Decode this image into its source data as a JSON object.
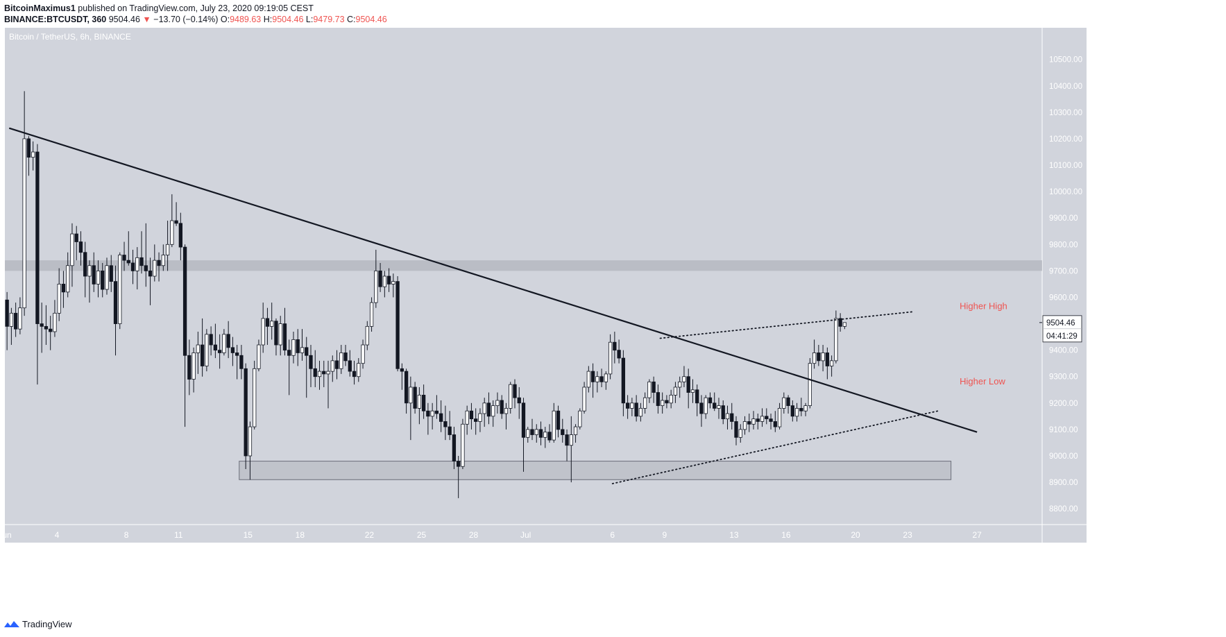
{
  "header": {
    "author": "BitcoinMaximus1",
    "published": "published on TradingView.com, July 23, 2020 09:19:05 CEST",
    "symbol": "BINANCE:BTCUSDT, 360",
    "last": "9504.46",
    "change_arrow": "▼",
    "change": "−13.70 (−0.14%)",
    "o_label": "O:",
    "o": "9489.63",
    "h_label": "H:",
    "h": "9504.46",
    "l_label": "L:",
    "l": "9479.73",
    "c_label": "C:",
    "c": "9504.46"
  },
  "footer": {
    "brand": "TradingView",
    "logo_icon": "tradingview-logo-icon"
  },
  "chart_data": {
    "type": "candlestick",
    "title": "Bitcoin / TetherUS, 6h, BINANCE",
    "colors": {
      "background": "#d1d4dc",
      "candle_up": "#ffffff",
      "candle_down": "#131722",
      "annotation": "#ef5350",
      "zone": "#b2b5be"
    },
    "y_axis": {
      "range": [
        8740,
        10620
      ],
      "ticks": [
        "10500.00",
        "10400.00",
        "10300.00",
        "10200.00",
        "10100.00",
        "10000.00",
        "9900.00",
        "9800.00",
        "9700.00",
        "9600.00",
        "9500.00",
        "9400.00",
        "9300.00",
        "9200.00",
        "9100.00",
        "9000.00",
        "8900.00",
        "8800.00"
      ],
      "last_price_label": "9504.46",
      "countdown_label": "04:41:29"
    },
    "x_axis": {
      "range": [
        "2020-06-01 00:00",
        "2020-07-30 18:00"
      ],
      "ticks": [
        {
          "label": "Jun",
          "date": "2020-06-01"
        },
        {
          "label": "4",
          "date": "2020-06-04"
        },
        {
          "label": "8",
          "date": "2020-06-08"
        },
        {
          "label": "11",
          "date": "2020-06-11"
        },
        {
          "label": "15",
          "date": "2020-06-15"
        },
        {
          "label": "18",
          "date": "2020-06-18"
        },
        {
          "label": "22",
          "date": "2020-06-22"
        },
        {
          "label": "25",
          "date": "2020-06-25"
        },
        {
          "label": "28",
          "date": "2020-06-28"
        },
        {
          "label": "Jul",
          "date": "2020-07-01"
        },
        {
          "label": "6",
          "date": "2020-07-06"
        },
        {
          "label": "9",
          "date": "2020-07-09"
        },
        {
          "label": "13",
          "date": "2020-07-13"
        },
        {
          "label": "16",
          "date": "2020-07-16"
        },
        {
          "label": "20",
          "date": "2020-07-20"
        },
        {
          "label": "23",
          "date": "2020-07-23"
        },
        {
          "label": "27",
          "date": "2020-07-27"
        }
      ]
    },
    "candles_start": "2020-06-01 00:00",
    "candle_hours": 6,
    "candles_ohlc": [
      [
        9590,
        9620,
        9400,
        9490
      ],
      [
        9490,
        9560,
        9420,
        9540
      ],
      [
        9540,
        9580,
        9450,
        9480
      ],
      [
        9480,
        9600,
        9460,
        9560
      ],
      [
        9560,
        10380,
        9530,
        10200
      ],
      [
        10200,
        10210,
        10060,
        10130
      ],
      [
        10130,
        10190,
        10080,
        10150
      ],
      [
        10150,
        10180,
        9270,
        9500
      ],
      [
        9500,
        9580,
        9390,
        9490
      ],
      [
        9490,
        9570,
        9420,
        9480
      ],
      [
        9480,
        9530,
        9400,
        9470
      ],
      [
        9470,
        9590,
        9450,
        9540
      ],
      [
        9540,
        9710,
        9510,
        9650
      ],
      [
        9650,
        9700,
        9560,
        9620
      ],
      [
        9620,
        9770,
        9600,
        9720
      ],
      [
        9720,
        9880,
        9640,
        9840
      ],
      [
        9840,
        9870,
        9740,
        9810
      ],
      [
        9810,
        9850,
        9720,
        9770
      ],
      [
        9770,
        9810,
        9600,
        9680
      ],
      [
        9680,
        9740,
        9580,
        9720
      ],
      [
        9720,
        9770,
        9620,
        9650
      ],
      [
        9650,
        9740,
        9600,
        9700
      ],
      [
        9700,
        9730,
        9600,
        9630
      ],
      [
        9630,
        9750,
        9610,
        9720
      ],
      [
        9720,
        9760,
        9620,
        9660
      ],
      [
        9660,
        9720,
        9380,
        9500
      ],
      [
        9500,
        9770,
        9480,
        9760
      ],
      [
        9760,
        9810,
        9700,
        9740
      ],
      [
        9740,
        9850,
        9720,
        9730
      ],
      [
        9730,
        9780,
        9650,
        9700
      ],
      [
        9700,
        9790,
        9630,
        9750
      ],
      [
        9750,
        9850,
        9690,
        9720
      ],
      [
        9720,
        9880,
        9640,
        9700
      ],
      [
        9700,
        9750,
        9570,
        9680
      ],
      [
        9680,
        9800,
        9660,
        9740
      ],
      [
        9740,
        9770,
        9660,
        9720
      ],
      [
        9720,
        9800,
        9700,
        9760
      ],
      [
        9760,
        9890,
        9700,
        9800
      ],
      [
        9800,
        9990,
        9790,
        9890
      ],
      [
        9890,
        9960,
        9870,
        9880
      ],
      [
        9880,
        9920,
        9740,
        9790
      ],
      [
        9790,
        9800,
        9110,
        9380
      ],
      [
        9380,
        9440,
        9230,
        9290
      ],
      [
        9290,
        9410,
        9240,
        9390
      ],
      [
        9390,
        9470,
        9310,
        9420
      ],
      [
        9420,
        9520,
        9300,
        9340
      ],
      [
        9340,
        9480,
        9320,
        9460
      ],
      [
        9460,
        9490,
        9380,
        9420
      ],
      [
        9420,
        9500,
        9370,
        9400
      ],
      [
        9400,
        9460,
        9330,
        9390
      ],
      [
        9390,
        9480,
        9380,
        9460
      ],
      [
        9460,
        9510,
        9370,
        9410
      ],
      [
        9410,
        9450,
        9340,
        9390
      ],
      [
        9390,
        9420,
        9290,
        9380
      ],
      [
        9380,
        9420,
        9290,
        9330
      ],
      [
        9330,
        9350,
        8950,
        9000
      ],
      [
        9000,
        9130,
        8910,
        9110
      ],
      [
        9110,
        9360,
        9100,
        9330
      ],
      [
        9330,
        9440,
        9320,
        9420
      ],
      [
        9420,
        9580,
        9390,
        9520
      ],
      [
        9520,
        9560,
        9420,
        9490
      ],
      [
        9490,
        9580,
        9440,
        9510
      ],
      [
        9510,
        9520,
        9380,
        9420
      ],
      [
        9420,
        9530,
        9380,
        9500
      ],
      [
        9500,
        9560,
        9380,
        9400
      ],
      [
        9400,
        9440,
        9230,
        9380
      ],
      [
        9380,
        9470,
        9350,
        9440
      ],
      [
        9440,
        9480,
        9340,
        9390
      ],
      [
        9390,
        9480,
        9360,
        9410
      ],
      [
        9410,
        9450,
        9220,
        9380
      ],
      [
        9380,
        9420,
        9260,
        9330
      ],
      [
        9330,
        9400,
        9260,
        9300
      ],
      [
        9300,
        9360,
        9250,
        9320
      ],
      [
        9320,
        9360,
        9260,
        9310
      ],
      [
        9310,
        9360,
        9180,
        9320
      ],
      [
        9320,
        9380,
        9280,
        9360
      ],
      [
        9360,
        9400,
        9290,
        9330
      ],
      [
        9330,
        9420,
        9310,
        9390
      ],
      [
        9390,
        9420,
        9340,
        9360
      ],
      [
        9360,
        9400,
        9300,
        9320
      ],
      [
        9320,
        9360,
        9270,
        9300
      ],
      [
        9300,
        9370,
        9280,
        9350
      ],
      [
        9350,
        9440,
        9330,
        9420
      ],
      [
        9420,
        9510,
        9400,
        9490
      ],
      [
        9490,
        9600,
        9470,
        9580
      ],
      [
        9580,
        9780,
        9560,
        9700
      ],
      [
        9700,
        9730,
        9620,
        9640
      ],
      [
        9640,
        9700,
        9600,
        9680
      ],
      [
        9680,
        9710,
        9620,
        9650
      ],
      [
        9650,
        9690,
        9600,
        9660
      ],
      [
        9660,
        9680,
        9320,
        9330
      ],
      [
        9330,
        9350,
        9250,
        9320
      ],
      [
        9320,
        9330,
        9160,
        9200
      ],
      [
        9200,
        9300,
        9060,
        9260
      ],
      [
        9260,
        9280,
        9160,
        9180
      ],
      [
        9180,
        9260,
        9120,
        9230
      ],
      [
        9230,
        9270,
        9140,
        9170
      ],
      [
        9170,
        9200,
        9080,
        9150
      ],
      [
        9150,
        9200,
        9100,
        9170
      ],
      [
        9170,
        9230,
        9140,
        9160
      ],
      [
        9160,
        9210,
        9090,
        9130
      ],
      [
        9130,
        9190,
        9060,
        9110
      ],
      [
        9110,
        9170,
        9060,
        9080
      ],
      [
        9080,
        9110,
        8950,
        8980
      ],
      [
        8980,
        9000,
        8840,
        8960
      ],
      [
        8960,
        9140,
        8950,
        9120
      ],
      [
        9120,
        9190,
        9080,
        9170
      ],
      [
        9170,
        9200,
        9100,
        9140
      ],
      [
        9140,
        9180,
        9080,
        9130
      ],
      [
        9130,
        9180,
        9090,
        9160
      ],
      [
        9160,
        9220,
        9110,
        9200
      ],
      [
        9200,
        9240,
        9120,
        9150
      ],
      [
        9150,
        9210,
        9110,
        9190
      ],
      [
        9190,
        9240,
        9160,
        9210
      ],
      [
        9210,
        9230,
        9140,
        9160
      ],
      [
        9160,
        9200,
        9100,
        9180
      ],
      [
        9180,
        9280,
        9160,
        9270
      ],
      [
        9270,
        9290,
        9180,
        9220
      ],
      [
        9220,
        9260,
        9140,
        9200
      ],
      [
        9200,
        9220,
        8940,
        9070
      ],
      [
        9070,
        9110,
        9050,
        9100
      ],
      [
        9100,
        9140,
        9060,
        9080
      ],
      [
        9080,
        9120,
        9050,
        9100
      ],
      [
        9100,
        9130,
        9040,
        9070
      ],
      [
        9070,
        9110,
        9030,
        9090
      ],
      [
        9090,
        9120,
        9050,
        9060
      ],
      [
        9060,
        9200,
        9050,
        9170
      ],
      [
        9170,
        9190,
        9070,
        9100
      ],
      [
        9100,
        9140,
        9050,
        9080
      ],
      [
        9080,
        9100,
        8980,
        9040
      ],
      [
        9040,
        9150,
        8900,
        9080
      ],
      [
        9080,
        9120,
        9050,
        9110
      ],
      [
        9110,
        9180,
        9100,
        9170
      ],
      [
        9170,
        9280,
        9160,
        9260
      ],
      [
        9260,
        9340,
        9240,
        9320
      ],
      [
        9320,
        9350,
        9220,
        9280
      ],
      [
        9280,
        9320,
        9240,
        9300
      ],
      [
        9300,
        9330,
        9260,
        9280
      ],
      [
        9280,
        9320,
        9250,
        9310
      ],
      [
        9310,
        9460,
        9290,
        9430
      ],
      [
        9430,
        9470,
        9350,
        9400
      ],
      [
        9400,
        9440,
        9350,
        9370
      ],
      [
        9370,
        9400,
        9150,
        9200
      ],
      [
        9200,
        9230,
        9140,
        9180
      ],
      [
        9180,
        9220,
        9150,
        9200
      ],
      [
        9200,
        9230,
        9130,
        9150
      ],
      [
        9150,
        9200,
        9130,
        9180
      ],
      [
        9180,
        9240,
        9160,
        9220
      ],
      [
        9220,
        9290,
        9200,
        9280
      ],
      [
        9280,
        9300,
        9200,
        9240
      ],
      [
        9240,
        9270,
        9160,
        9190
      ],
      [
        9190,
        9240,
        9160,
        9210
      ],
      [
        9210,
        9230,
        9180,
        9200
      ],
      [
        9200,
        9250,
        9180,
        9230
      ],
      [
        9230,
        9280,
        9200,
        9260
      ],
      [
        9260,
        9300,
        9220,
        9280
      ],
      [
        9280,
        9340,
        9260,
        9300
      ],
      [
        9300,
        9330,
        9180,
        9240
      ],
      [
        9240,
        9290,
        9200,
        9250
      ],
      [
        9250,
        9270,
        9150,
        9200
      ],
      [
        9200,
        9230,
        9110,
        9160
      ],
      [
        9160,
        9230,
        9140,
        9220
      ],
      [
        9220,
        9240,
        9180,
        9200
      ],
      [
        9200,
        9240,
        9170,
        9180
      ],
      [
        9180,
        9220,
        9140,
        9190
      ],
      [
        9190,
        9210,
        9120,
        9140
      ],
      [
        9140,
        9190,
        9100,
        9160
      ],
      [
        9160,
        9200,
        9100,
        9130
      ],
      [
        9130,
        9150,
        9040,
        9070
      ],
      [
        9070,
        9120,
        9050,
        9100
      ],
      [
        9100,
        9150,
        9080,
        9130
      ],
      [
        9130,
        9160,
        9090,
        9120
      ],
      [
        9120,
        9170,
        9100,
        9140
      ],
      [
        9140,
        9160,
        9100,
        9130
      ],
      [
        9130,
        9180,
        9110,
        9150
      ],
      [
        9150,
        9180,
        9120,
        9140
      ],
      [
        9140,
        9160,
        9100,
        9130
      ],
      [
        9130,
        9170,
        9090,
        9110
      ],
      [
        9110,
        9200,
        9100,
        9180
      ],
      [
        9180,
        9240,
        9160,
        9220
      ],
      [
        9220,
        9230,
        9160,
        9190
      ],
      [
        9190,
        9210,
        9130,
        9150
      ],
      [
        9150,
        9200,
        9130,
        9180
      ],
      [
        9180,
        9220,
        9150,
        9170
      ],
      [
        9170,
        9200,
        9150,
        9190
      ],
      [
        9190,
        9370,
        9180,
        9350
      ],
      [
        9350,
        9440,
        9330,
        9390
      ],
      [
        9390,
        9420,
        9340,
        9360
      ],
      [
        9360,
        9420,
        9320,
        9390
      ],
      [
        9390,
        9410,
        9290,
        9340
      ],
      [
        9340,
        9380,
        9300,
        9360
      ],
      [
        9360,
        9550,
        9350,
        9520
      ],
      [
        9520,
        9540,
        9470,
        9490
      ],
      [
        9490,
        9504.46,
        9479.73,
        9504.46
      ]
    ],
    "annotations": [
      {
        "text": "Higher High",
        "color": "#ef5350",
        "date": "2020-07-26 00:00",
        "price": 9555
      },
      {
        "text": "Higher Low",
        "color": "#ef5350",
        "date": "2020-07-26 00:00",
        "price": 9270
      }
    ],
    "trendlines": [
      {
        "name": "descending resistance",
        "style": "solid",
        "from": {
          "date": "2020-06-01 06:00",
          "price": 10240
        },
        "to": {
          "date": "2020-07-27 00:00",
          "price": 9090
        }
      },
      {
        "name": "upper channel",
        "style": "dotted",
        "from": {
          "date": "2020-07-08 18:00",
          "price": 9445
        },
        "to": {
          "date": "2020-07-23 06:00",
          "price": 9545
        }
      },
      {
        "name": "lower channel",
        "style": "dotted",
        "from": {
          "date": "2020-07-06 00:00",
          "price": 8895
        },
        "to": {
          "date": "2020-07-24 18:00",
          "price": 9170
        }
      }
    ],
    "zones": [
      {
        "name": "resistance band",
        "from": {
          "date": "2020-06-01 00:00",
          "price": 9700
        },
        "to": {
          "date": "2020-07-30 18:00",
          "price": 9740
        }
      },
      {
        "name": "support box",
        "from": {
          "date": "2020-06-14 12:00",
          "price": 8910
        },
        "to": {
          "date": "2020-07-25 12:00",
          "price": 8980
        }
      }
    ]
  }
}
